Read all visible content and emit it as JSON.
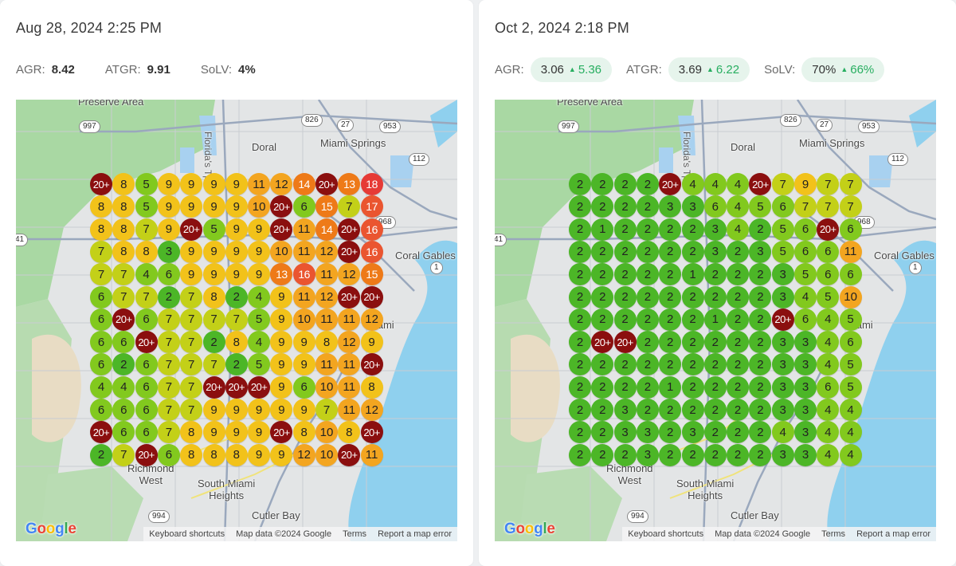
{
  "colors": {
    "g1": "#4cb627",
    "g2": "#82c91e",
    "y1": "#c3d018",
    "y2": "#f2c21a",
    "o1": "#f3a520",
    "o2": "#ee7a18",
    "r1": "#ea5530",
    "r2": "#e63a36",
    "dk": "#8b0f0f",
    "delta_green": "#27ae60",
    "pill_bg": "#e6f4ec"
  },
  "panels": [
    {
      "date": "Aug 28, 2024 2:25 PM",
      "metrics": {
        "agr_label": "AGR:",
        "agr": "8.42",
        "atgr_label": "ATGR:",
        "atgr": "9.91",
        "solv_label": "SoLV:",
        "solv": "4%"
      },
      "grid": [
        [
          "20+",
          "8",
          "5",
          "9",
          "9",
          "9",
          "9",
          "11",
          "12",
          "14",
          "20+",
          "13",
          "18"
        ],
        [
          "8",
          "8",
          "5",
          "9",
          "9",
          "9",
          "9",
          "10",
          "20+",
          "6",
          "15",
          "7",
          "17"
        ],
        [
          "8",
          "8",
          "7",
          "9",
          "20+",
          "5",
          "9",
          "9",
          "20+",
          "11",
          "14",
          "20+",
          "16"
        ],
        [
          "7",
          "8",
          "8",
          "3",
          "9",
          "9",
          "9",
          "9",
          "10",
          "11",
          "12",
          "20+",
          "16"
        ],
        [
          "7",
          "7",
          "4",
          "6",
          "9",
          "9",
          "9",
          "9",
          "13",
          "16",
          "11",
          "12",
          "15"
        ],
        [
          "6",
          "7",
          "7",
          "2",
          "7",
          "8",
          "2",
          "4",
          "9",
          "11",
          "12",
          "20+",
          "20+"
        ],
        [
          "6",
          "20+",
          "6",
          "7",
          "7",
          "7",
          "7",
          "5",
          "9",
          "10",
          "11",
          "11",
          "12"
        ],
        [
          "6",
          "6",
          "20+",
          "7",
          "7",
          "2",
          "8",
          "4",
          "9",
          "9",
          "8",
          "12",
          "9"
        ],
        [
          "6",
          "2",
          "6",
          "7",
          "7",
          "7",
          "2",
          "5",
          "9",
          "9",
          "11",
          "11",
          "20+"
        ],
        [
          "4",
          "4",
          "6",
          "7",
          "7",
          "20+",
          "20+",
          "20+",
          "9",
          "6",
          "10",
          "11",
          "8"
        ],
        [
          "6",
          "6",
          "6",
          "7",
          "7",
          "9",
          "9",
          "9",
          "9",
          "9",
          "7",
          "11",
          "12"
        ],
        [
          "20+",
          "6",
          "6",
          "7",
          "8",
          "9",
          "9",
          "9",
          "20+",
          "8",
          "10",
          "8",
          "20+"
        ],
        [
          "2",
          "7",
          "20+",
          "6",
          "8",
          "8",
          "8",
          "9",
          "9",
          "12",
          "10",
          "20+",
          "11"
        ]
      ]
    },
    {
      "date": "Oct 2, 2024 2:18 PM",
      "metrics": {
        "agr_label": "AGR:",
        "agr": "3.06",
        "agr_delta": "5.36",
        "atgr_label": "ATGR:",
        "atgr": "3.69",
        "atgr_delta": "6.22",
        "solv_label": "SoLV:",
        "solv": "70%",
        "solv_delta": "66%",
        "delta_icon": "triangle-up-icon"
      },
      "grid": [
        [
          "2",
          "2",
          "2",
          "2",
          "20+",
          "4",
          "4",
          "4",
          "20+",
          "7",
          "9",
          "7",
          "7"
        ],
        [
          "2",
          "2",
          "2",
          "2",
          "3",
          "3",
          "6",
          "4",
          "5",
          "6",
          "7",
          "7",
          "7"
        ],
        [
          "2",
          "1",
          "2",
          "2",
          "2",
          "2",
          "3",
          "4",
          "2",
          "5",
          "6",
          "20+",
          "6"
        ],
        [
          "2",
          "2",
          "2",
          "2",
          "2",
          "2",
          "3",
          "2",
          "3",
          "5",
          "6",
          "6",
          "11"
        ],
        [
          "2",
          "2",
          "2",
          "2",
          "2",
          "1",
          "2",
          "2",
          "2",
          "3",
          "5",
          "6",
          "6"
        ],
        [
          "2",
          "2",
          "2",
          "2",
          "2",
          "2",
          "2",
          "2",
          "2",
          "3",
          "4",
          "5",
          "10"
        ],
        [
          "2",
          "2",
          "2",
          "2",
          "2",
          "2",
          "1",
          "2",
          "2",
          "20+",
          "6",
          "4",
          "5"
        ],
        [
          "2",
          "20+",
          "20+",
          "2",
          "2",
          "2",
          "2",
          "2",
          "2",
          "3",
          "3",
          "4",
          "6"
        ],
        [
          "2",
          "2",
          "2",
          "2",
          "2",
          "2",
          "2",
          "2",
          "2",
          "3",
          "3",
          "4",
          "5"
        ],
        [
          "2",
          "2",
          "2",
          "2",
          "1",
          "2",
          "2",
          "2",
          "2",
          "3",
          "3",
          "6",
          "5"
        ],
        [
          "2",
          "2",
          "3",
          "2",
          "2",
          "2",
          "2",
          "2",
          "2",
          "3",
          "3",
          "4",
          "4"
        ],
        [
          "2",
          "2",
          "3",
          "3",
          "2",
          "3",
          "2",
          "2",
          "2",
          "4",
          "3",
          "4",
          "4"
        ],
        [
          "2",
          "2",
          "2",
          "3",
          "2",
          "2",
          "2",
          "2",
          "2",
          "3",
          "3",
          "4",
          "4"
        ]
      ]
    }
  ],
  "map": {
    "labels": {
      "preserve": "Preserve Area",
      "turnpike": "Florida's Tpke",
      "doral": "Doral",
      "miami_springs": "Miami Springs",
      "coral_gables": "Coral Gables",
      "miami": "Miami",
      "richmond_west": "Richmond West",
      "south_miami_heights": "South Miami Heights",
      "cutler_bay": "Cutler Bay"
    },
    "shields": [
      "997",
      "826",
      "27",
      "953",
      "112",
      "968",
      "1",
      "41",
      "994"
    ],
    "logo": "Google",
    "footer": {
      "shortcuts": "Keyboard shortcuts",
      "mapdata": "Map data ©2024 Google",
      "terms": "Terms",
      "report": "Report a map error"
    }
  }
}
